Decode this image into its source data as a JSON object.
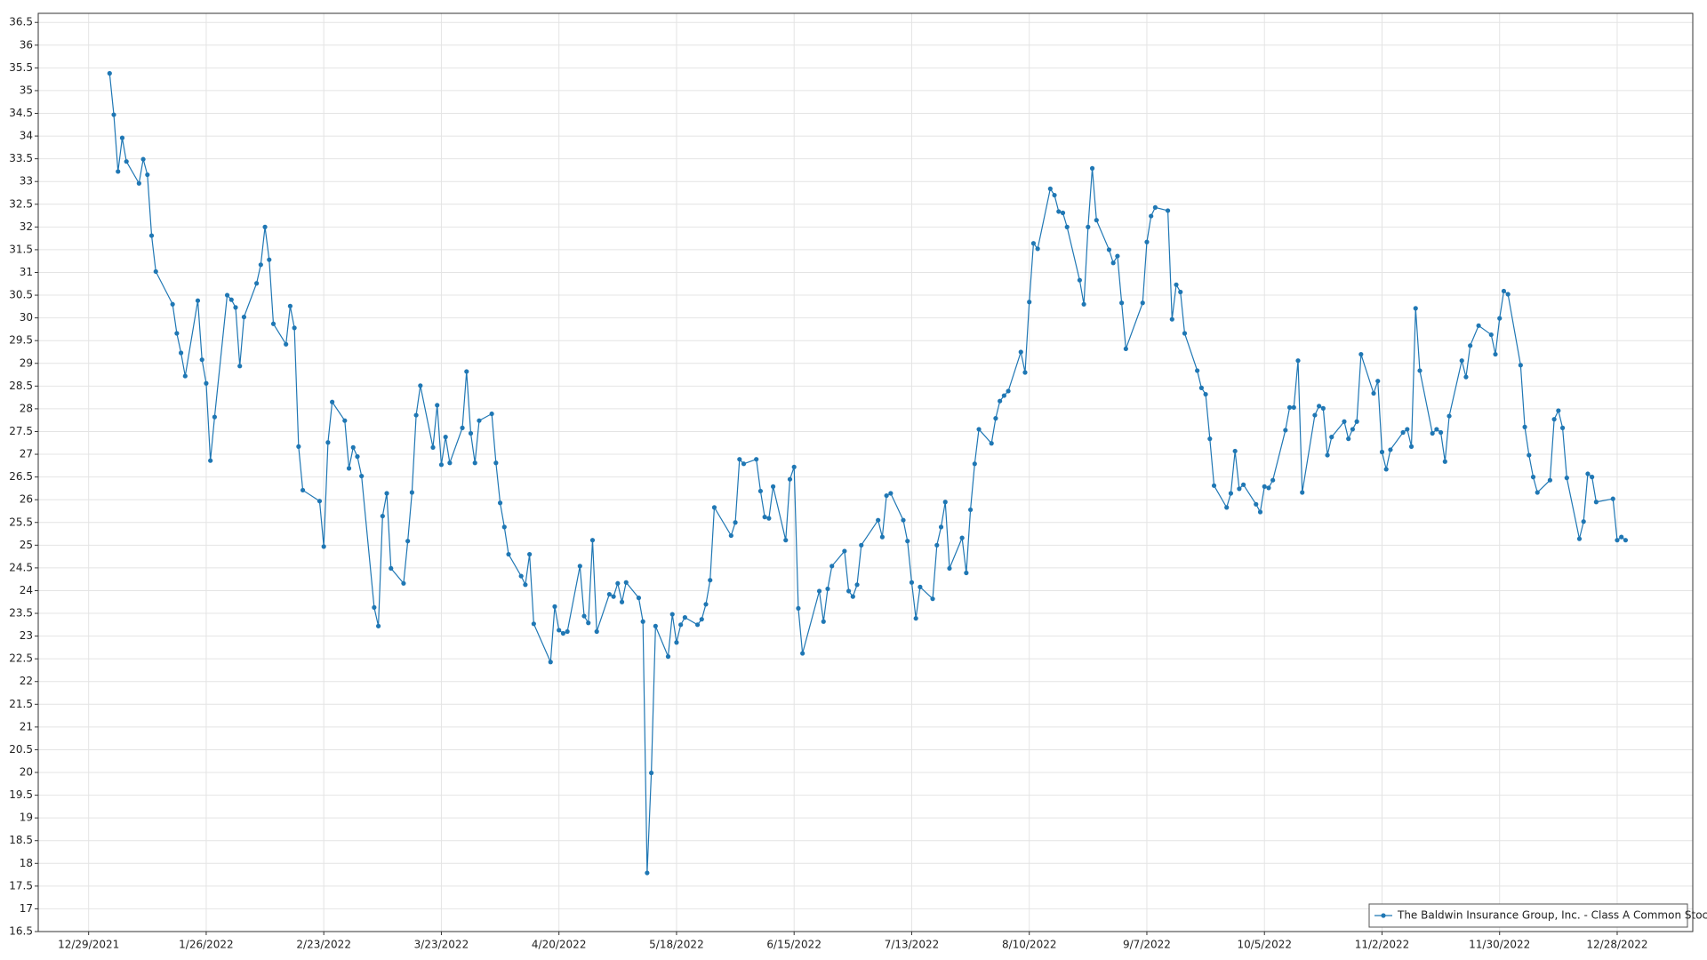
{
  "chart_data": {
    "type": "line",
    "x": [
      "2022-01-03",
      "2022-01-04",
      "2022-01-05",
      "2022-01-06",
      "2022-01-07",
      "2022-01-10",
      "2022-01-11",
      "2022-01-12",
      "2022-01-13",
      "2022-01-14",
      "2022-01-18",
      "2022-01-19",
      "2022-01-20",
      "2022-01-21",
      "2022-01-24",
      "2022-01-25",
      "2022-01-26",
      "2022-01-27",
      "2022-01-28",
      "2022-01-31",
      "2022-02-01",
      "2022-02-02",
      "2022-02-03",
      "2022-02-04",
      "2022-02-07",
      "2022-02-08",
      "2022-02-09",
      "2022-02-10",
      "2022-02-11",
      "2022-02-14",
      "2022-02-15",
      "2022-02-16",
      "2022-02-17",
      "2022-02-18",
      "2022-02-22",
      "2022-02-23",
      "2022-02-24",
      "2022-02-25",
      "2022-02-28",
      "2022-03-01",
      "2022-03-02",
      "2022-03-03",
      "2022-03-04",
      "2022-03-07",
      "2022-03-08",
      "2022-03-09",
      "2022-03-10",
      "2022-03-11",
      "2022-03-14",
      "2022-03-15",
      "2022-03-16",
      "2022-03-17",
      "2022-03-18",
      "2022-03-21",
      "2022-03-22",
      "2022-03-23",
      "2022-03-24",
      "2022-03-25",
      "2022-03-28",
      "2022-03-29",
      "2022-03-30",
      "2022-03-31",
      "2022-04-01",
      "2022-04-04",
      "2022-04-05",
      "2022-04-06",
      "2022-04-07",
      "2022-04-08",
      "2022-04-11",
      "2022-04-12",
      "2022-04-13",
      "2022-04-14",
      "2022-04-18",
      "2022-04-19",
      "2022-04-20",
      "2022-04-21",
      "2022-04-22",
      "2022-04-25",
      "2022-04-26",
      "2022-04-27",
      "2022-04-28",
      "2022-04-29",
      "2022-05-02",
      "2022-05-03",
      "2022-05-04",
      "2022-05-05",
      "2022-05-06",
      "2022-05-09",
      "2022-05-10",
      "2022-05-11",
      "2022-05-12",
      "2022-05-13",
      "2022-05-16",
      "2022-05-17",
      "2022-05-18",
      "2022-05-19",
      "2022-05-20",
      "2022-05-23",
      "2022-05-24",
      "2022-05-25",
      "2022-05-26",
      "2022-05-27",
      "2022-05-31",
      "2022-06-01",
      "2022-06-02",
      "2022-06-03",
      "2022-06-06",
      "2022-06-07",
      "2022-06-08",
      "2022-06-09",
      "2022-06-10",
      "2022-06-13",
      "2022-06-14",
      "2022-06-15",
      "2022-06-16",
      "2022-06-17",
      "2022-06-21",
      "2022-06-22",
      "2022-06-23",
      "2022-06-24",
      "2022-06-27",
      "2022-06-28",
      "2022-06-29",
      "2022-06-30",
      "2022-07-01",
      "2022-07-05",
      "2022-07-06",
      "2022-07-07",
      "2022-07-08",
      "2022-07-11",
      "2022-07-12",
      "2022-07-13",
      "2022-07-14",
      "2022-07-15",
      "2022-07-18",
      "2022-07-19",
      "2022-07-20",
      "2022-07-21",
      "2022-07-22",
      "2022-07-25",
      "2022-07-26",
      "2022-07-27",
      "2022-07-28",
      "2022-07-29",
      "2022-08-01",
      "2022-08-02",
      "2022-08-03",
      "2022-08-04",
      "2022-08-05",
      "2022-08-08",
      "2022-08-09",
      "2022-08-10",
      "2022-08-11",
      "2022-08-12",
      "2022-08-15",
      "2022-08-16",
      "2022-08-17",
      "2022-08-18",
      "2022-08-19",
      "2022-08-22",
      "2022-08-23",
      "2022-08-24",
      "2022-08-25",
      "2022-08-26",
      "2022-08-29",
      "2022-08-30",
      "2022-08-31",
      "2022-09-01",
      "2022-09-02",
      "2022-09-06",
      "2022-09-07",
      "2022-09-08",
      "2022-09-09",
      "2022-09-12",
      "2022-09-13",
      "2022-09-14",
      "2022-09-15",
      "2022-09-16",
      "2022-09-19",
      "2022-09-20",
      "2022-09-21",
      "2022-09-22",
      "2022-09-23",
      "2022-09-26",
      "2022-09-27",
      "2022-09-28",
      "2022-09-29",
      "2022-09-30",
      "2022-10-03",
      "2022-10-04",
      "2022-10-05",
      "2022-10-06",
      "2022-10-07",
      "2022-10-10",
      "2022-10-11",
      "2022-10-12",
      "2022-10-13",
      "2022-10-14",
      "2022-10-17",
      "2022-10-18",
      "2022-10-19",
      "2022-10-20",
      "2022-10-21",
      "2022-10-24",
      "2022-10-25",
      "2022-10-26",
      "2022-10-27",
      "2022-10-28",
      "2022-10-31",
      "2022-11-01",
      "2022-11-02",
      "2022-11-03",
      "2022-11-04",
      "2022-11-07",
      "2022-11-08",
      "2022-11-09",
      "2022-11-10",
      "2022-11-11",
      "2022-11-14",
      "2022-11-15",
      "2022-11-16",
      "2022-11-17",
      "2022-11-18",
      "2022-11-21",
      "2022-11-22",
      "2022-11-23",
      "2022-11-25",
      "2022-11-28",
      "2022-11-29",
      "2022-11-30",
      "2022-12-01",
      "2022-12-02",
      "2022-12-05",
      "2022-12-06",
      "2022-12-07",
      "2022-12-08",
      "2022-12-09",
      "2022-12-12",
      "2022-12-13",
      "2022-12-14",
      "2022-12-15",
      "2022-12-16",
      "2022-12-19",
      "2022-12-20",
      "2022-12-21",
      "2022-12-22",
      "2022-12-23",
      "2022-12-27",
      "2022-12-28",
      "2022-12-29",
      "2022-12-30"
    ],
    "series": [
      {
        "name": "The Baldwin Insurance Group, Inc. - Class A Common Stock",
        "color": "#1f77b4",
        "values": [
          35.38,
          34.47,
          33.22,
          33.96,
          33.44,
          32.96,
          33.49,
          33.15,
          31.81,
          31.02,
          30.3,
          29.66,
          29.23,
          28.72,
          30.38,
          29.08,
          28.56,
          26.86,
          27.82,
          30.5,
          30.4,
          30.23,
          28.94,
          30.02,
          30.76,
          31.17,
          32.0,
          31.28,
          29.87,
          29.42,
          30.26,
          29.78,
          27.17,
          26.21,
          25.97,
          24.97,
          27.26,
          28.15,
          27.74,
          26.69,
          27.15,
          26.95,
          26.52,
          23.63,
          23.22,
          25.64,
          26.14,
          24.49,
          24.16,
          25.09,
          26.16,
          27.86,
          28.51,
          27.15,
          28.08,
          26.77,
          27.38,
          26.81,
          27.58,
          28.82,
          27.46,
          26.81,
          27.74,
          27.89,
          26.81,
          25.93,
          25.4,
          24.8,
          24.32,
          24.13,
          24.8,
          23.27,
          22.43,
          23.65,
          23.13,
          23.06,
          23.1,
          24.54,
          23.44,
          23.29,
          25.11,
          23.1,
          23.92,
          23.87,
          24.16,
          23.75,
          24.18,
          23.84,
          23.32,
          17.79,
          19.99,
          23.22,
          22.55,
          23.48,
          22.86,
          23.25,
          23.41,
          23.25,
          23.37,
          23.7,
          24.23,
          25.83,
          25.21,
          25.5,
          26.89,
          26.79,
          26.89,
          26.19,
          25.62,
          25.59,
          26.29,
          25.11,
          26.45,
          26.72,
          23.61,
          22.62,
          23.99,
          23.32,
          24.04,
          24.54,
          24.87,
          23.99,
          23.87,
          24.13,
          25.0,
          25.55,
          25.18,
          26.09,
          26.14,
          25.55,
          25.09,
          24.18,
          23.39,
          24.08,
          23.82,
          25.0,
          25.4,
          25.95,
          24.49,
          25.16,
          24.39,
          25.78,
          26.79,
          27.55,
          27.24,
          27.79,
          28.17,
          28.29,
          28.39,
          29.25,
          28.8,
          30.35,
          31.64,
          31.52,
          32.84,
          32.7,
          32.34,
          32.31,
          32.0,
          30.83,
          30.3,
          32.0,
          33.29,
          32.15,
          31.5,
          31.21,
          31.36,
          30.33,
          29.32,
          30.33,
          31.67,
          32.24,
          32.43,
          32.36,
          29.97,
          30.73,
          30.57,
          29.66,
          28.84,
          28.46,
          28.32,
          27.34,
          26.31,
          25.83,
          26.14,
          27.07,
          26.24,
          26.33,
          25.9,
          25.73,
          26.29,
          26.26,
          26.43,
          27.53,
          28.03,
          28.03,
          29.06,
          26.16,
          27.86,
          28.06,
          28.01,
          26.98,
          27.38,
          27.72,
          27.34,
          27.55,
          27.72,
          29.2,
          28.34,
          28.61,
          27.05,
          26.67,
          27.1,
          27.48,
          27.55,
          27.17,
          30.21,
          28.84,
          27.46,
          27.55,
          27.48,
          26.84,
          27.84,
          29.06,
          28.7,
          29.39,
          29.83,
          29.63,
          29.2,
          29.99,
          30.59,
          30.52,
          28.96,
          27.6,
          26.98,
          26.5,
          26.16,
          26.43,
          27.77,
          27.96,
          27.58,
          26.48,
          25.14,
          25.52,
          26.57,
          26.5,
          25.95,
          26.02,
          25.11,
          25.18,
          25.11
        ]
      }
    ],
    "xlim": [
      "2021-12-17",
      "2023-01-15"
    ],
    "xticks": [
      {
        "value": "2021-12-29",
        "label": "12/29/2021"
      },
      {
        "value": "2022-01-26",
        "label": "1/26/2022"
      },
      {
        "value": "2022-02-23",
        "label": "2/23/2022"
      },
      {
        "value": "2022-03-23",
        "label": "3/23/2022"
      },
      {
        "value": "2022-04-20",
        "label": "4/20/2022"
      },
      {
        "value": "2022-05-18",
        "label": "5/18/2022"
      },
      {
        "value": "2022-06-15",
        "label": "6/15/2022"
      },
      {
        "value": "2022-07-13",
        "label": "7/13/2022"
      },
      {
        "value": "2022-08-10",
        "label": "8/10/2022"
      },
      {
        "value": "2022-09-07",
        "label": "9/7/2022"
      },
      {
        "value": "2022-10-05",
        "label": "10/5/2022"
      },
      {
        "value": "2022-11-02",
        "label": "11/2/2022"
      },
      {
        "value": "2022-11-30",
        "label": "11/30/2022"
      },
      {
        "value": "2022-12-28",
        "label": "12/28/2022"
      }
    ],
    "ylim": [
      16.5,
      36.7
    ],
    "yticks": [
      16.5,
      17,
      17.5,
      18,
      18.5,
      19,
      19.5,
      20,
      20.5,
      21,
      21.5,
      22,
      22.5,
      23,
      23.5,
      24,
      24.5,
      25,
      25.5,
      26,
      26.5,
      27,
      27.5,
      28,
      28.5,
      29,
      29.5,
      30,
      30.5,
      31,
      31.5,
      32,
      32.5,
      33,
      33.5,
      34,
      34.5,
      35,
      35.5,
      36,
      36.5
    ],
    "grid": true,
    "legend": "lower right"
  }
}
